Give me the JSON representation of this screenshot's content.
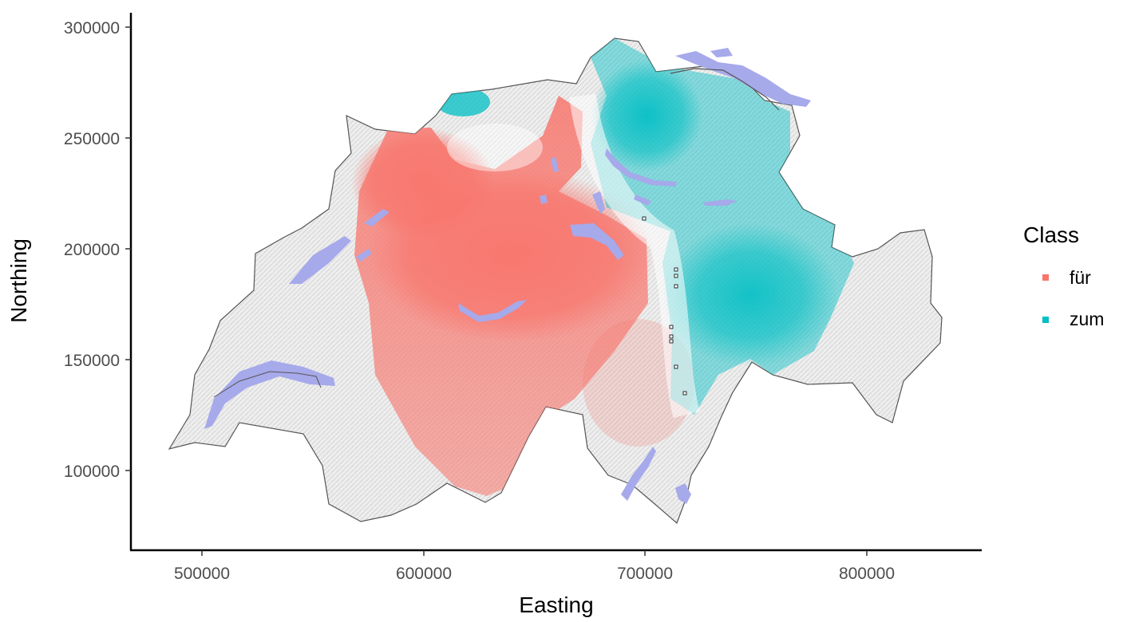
{
  "map": {
    "x_axis": {
      "label": "Easting",
      "ticks": [
        "500000",
        "600000",
        "700000",
        "800000"
      ]
    },
    "y_axis": {
      "label": "Northing",
      "ticks": [
        "100000",
        "150000",
        "200000",
        "250000",
        "300000"
      ]
    },
    "legend": {
      "title": "Class",
      "items": [
        {
          "label": "für",
          "color": "#F8766D"
        },
        {
          "label": "zum",
          "color": "#00BFC4"
        }
      ]
    },
    "colors": {
      "lake": "#a6a9ea",
      "terrain": "#e6e6e6",
      "border": "#555555"
    }
  }
}
